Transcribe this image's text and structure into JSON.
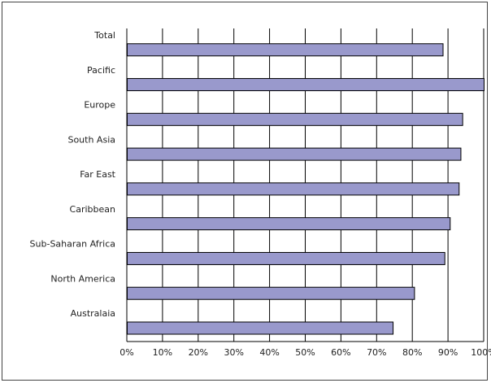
{
  "chart_data": {
    "type": "bar",
    "orientation": "horizontal",
    "title": "",
    "xlabel": "",
    "ylabel": "",
    "categories": [
      "Total",
      "Pacific",
      "Europe",
      "South Asia",
      "Far East",
      "Caribbean",
      "Sub-Saharan Africa",
      "North America",
      "Australaia"
    ],
    "values": [
      88.5,
      100,
      94,
      93.5,
      93,
      90.5,
      89,
      80.5,
      74.5
    ],
    "xlim": [
      0,
      100
    ],
    "x_ticks": [
      "0%",
      "10%",
      "20%",
      "30%",
      "40%",
      "50%",
      "60%",
      "70%",
      "80%",
      "90%",
      "100%"
    ],
    "grid": "vertical",
    "legend": "none",
    "bar_color": "#9999cc",
    "bar_edge_color": "#000000"
  }
}
